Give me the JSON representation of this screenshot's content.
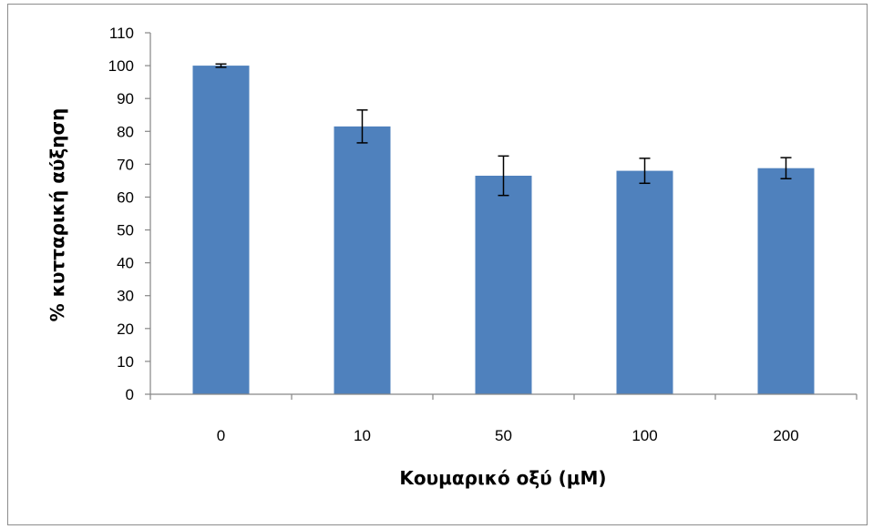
{
  "chart_data": {
    "type": "bar",
    "categories": [
      "0",
      "10",
      "50",
      "100",
      "200"
    ],
    "values": [
      100,
      81.5,
      66.5,
      68,
      68.8
    ],
    "error": [
      0.5,
      5,
      6,
      3.8,
      3.2
    ],
    "xlabel": "Κουμαρικό οξύ (μΜ)",
    "ylabel": "% κυτταρική αύξηση",
    "ylim": [
      0,
      110
    ],
    "yticks": [
      0,
      10,
      20,
      30,
      40,
      50,
      60,
      70,
      80,
      90,
      100,
      110
    ],
    "grid": false,
    "bar_color": "#4f81bd"
  }
}
